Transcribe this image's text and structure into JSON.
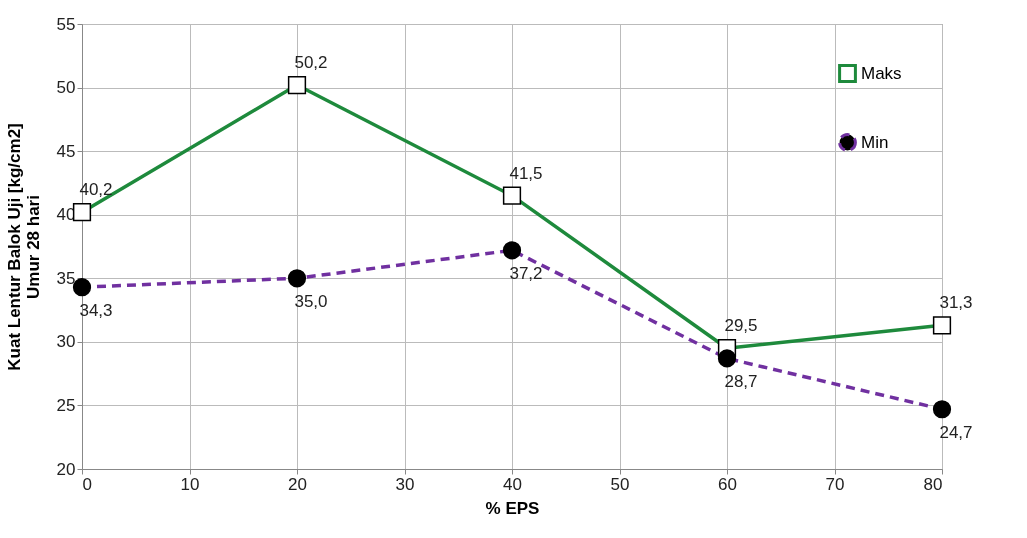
{
  "chart_data": {
    "type": "line",
    "xlabel": "% EPS",
    "ylabel": "Kuat Lentur Balok Uji  [kg/cm2]\nUmur 28 hari",
    "x": [
      0,
      20,
      40,
      60,
      80
    ],
    "series": [
      {
        "name": "Maks",
        "color": "#1e8a3c",
        "marker": "square",
        "line_style": "solid",
        "values": [
          40.2,
          50.2,
          41.5,
          29.5,
          31.3
        ],
        "value_labels": [
          "40,2",
          "50,2",
          "41,5",
          "29,5",
          "31,3"
        ]
      },
      {
        "name": "Min",
        "color": "#7030a0",
        "marker": "circle",
        "line_style": "dashed",
        "values": [
          34.3,
          35.0,
          37.2,
          28.7,
          24.7
        ],
        "value_labels": [
          "34,3",
          "35,0",
          "37,2",
          "28,7",
          "24,7"
        ]
      }
    ],
    "xlim": [
      0,
      80
    ],
    "xticks": [
      0,
      10,
      20,
      30,
      40,
      50,
      60,
      70,
      80
    ],
    "ylim": [
      20,
      55
    ],
    "yticks": [
      20,
      25,
      30,
      35,
      40,
      45,
      50,
      55
    ],
    "grid": true,
    "legend": "top right"
  }
}
